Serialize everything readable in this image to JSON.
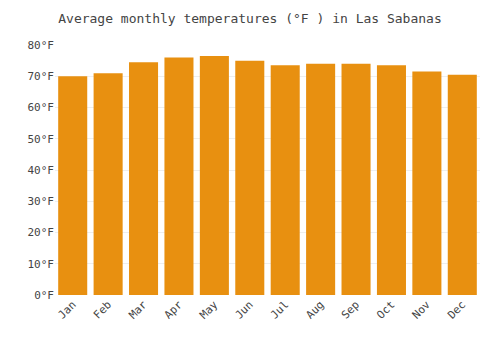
{
  "chart_data": {
    "type": "bar",
    "title": "Average monthly temperatures (°F ) in Las Sabanas",
    "categories": [
      "Jan",
      "Feb",
      "Mar",
      "Apr",
      "May",
      "Jun",
      "Jul",
      "Aug",
      "Sep",
      "Oct",
      "Nov",
      "Dec"
    ],
    "values": [
      70,
      71,
      74.5,
      76,
      76.5,
      75,
      73.5,
      74,
      74,
      73.5,
      71.5,
      70.5
    ],
    "color": "#E89010",
    "ylim": [
      0,
      80
    ],
    "yticks": [
      {
        "value": 0,
        "label": "0°F"
      },
      {
        "value": 10,
        "label": "10°F"
      },
      {
        "value": 20,
        "label": "20°F"
      },
      {
        "value": 30,
        "label": "30°F"
      },
      {
        "value": 40,
        "label": "40°F"
      },
      {
        "value": 50,
        "label": "50°F"
      },
      {
        "value": 60,
        "label": "60°F"
      },
      {
        "value": 70,
        "label": "70°F"
      },
      {
        "value": 80,
        "label": "80°F"
      }
    ],
    "grid": true
  }
}
